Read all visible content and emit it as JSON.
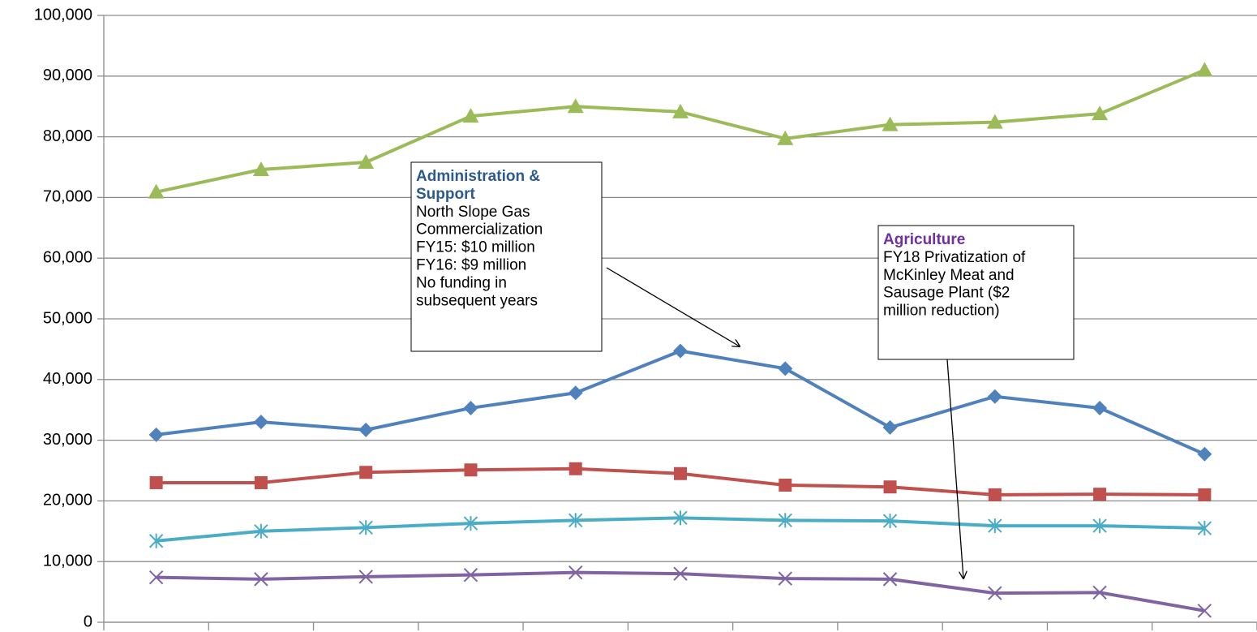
{
  "chart_data": {
    "type": "line",
    "categories": [
      null,
      null,
      null,
      null,
      null,
      null,
      null,
      null,
      null,
      null,
      null
    ],
    "ylim": [
      0,
      100000
    ],
    "yticks": [
      0,
      {
        "value": 10000,
        "label": "10,000"
      },
      {
        "value": 20000,
        "label": "20,000"
      },
      {
        "value": 30000,
        "label": "30,000"
      },
      {
        "value": 40000,
        "label": "40,000"
      },
      {
        "value": 50000,
        "label": "50,000"
      },
      {
        "value": 60000,
        "label": "60,000"
      },
      {
        "value": 70000,
        "label": "70,000"
      },
      {
        "value": 80000,
        "label": "80,000"
      },
      {
        "value": 90000,
        "label": "90,000"
      },
      {
        "value": 100000,
        "label": "100,000"
      }
    ],
    "grid": true,
    "series": [
      {
        "color": "#9bbb59",
        "marker": "triangle",
        "values": [
          70900,
          74600,
          75800,
          83400,
          85000,
          84100,
          79700,
          82000,
          82400,
          83800,
          91000
        ]
      },
      {
        "color": "#4f81bd",
        "marker": "diamond",
        "values": [
          30900,
          33000,
          31700,
          35300,
          37800,
          44700,
          41800,
          32100,
          37200,
          35300,
          27700
        ]
      },
      {
        "color": "#c0504d",
        "marker": "square",
        "values": [
          23000,
          23000,
          24700,
          25100,
          25300,
          24500,
          22600,
          22300,
          21000,
          21100,
          21000
        ]
      },
      {
        "color": "#4bacc6",
        "marker": "asterisk",
        "values": [
          13400,
          15000,
          15600,
          16300,
          16800,
          17200,
          16800,
          16700,
          15900,
          15900,
          15500
        ]
      },
      {
        "color": "#8064a2",
        "marker": "x",
        "values": [
          7400,
          7100,
          7500,
          7800,
          8200,
          8000,
          7200,
          7100,
          4800,
          4900,
          1900
        ]
      }
    ],
    "annotations": [
      {
        "title_lines": [
          "Administration &",
          "Support"
        ],
        "title_color": "#2c5a8e",
        "lines": [
          "North Slope Gas",
          "Commercialization",
          "FY15: $10 million",
          "FY16: $9 million",
          "No funding in",
          "subsequent years"
        ]
      },
      {
        "title_lines": [
          "Agriculture"
        ],
        "title_color": "#7030a0",
        "lines": [
          "FY18 Privatization of",
          "McKinley Meat and",
          "Sausage Plant ($2",
          "million reduction)"
        ]
      }
    ]
  }
}
